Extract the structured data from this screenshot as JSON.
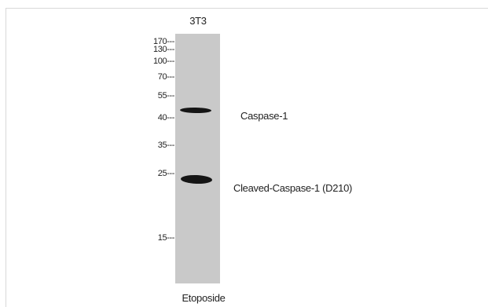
{
  "lane_label": "3T3",
  "markers": [
    "170",
    "130",
    "100",
    "70",
    "55",
    "40",
    "35",
    "25",
    "15"
  ],
  "marker_suffix": "---",
  "bands": [
    {
      "label": "Caspase-1"
    },
    {
      "label": "Cleaved-Caspase-1 (D210)"
    }
  ],
  "treatment": "Etoposide"
}
